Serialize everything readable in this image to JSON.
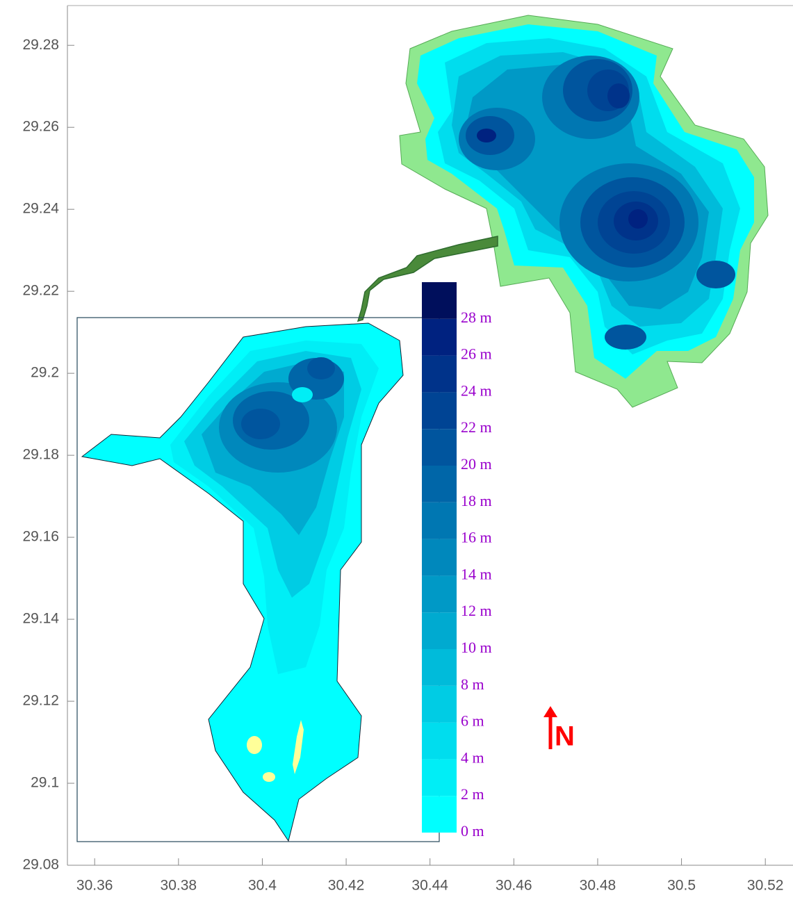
{
  "chart_data": {
    "type": "contour",
    "xlim": [
      30.3535,
      30.5266
    ],
    "ylim": [
      29.08,
      29.2897
    ],
    "xticks": [
      30.36,
      30.38,
      30.4,
      30.42,
      30.44,
      30.46,
      30.48,
      30.5,
      30.52
    ],
    "yticks": [
      29.08,
      29.1,
      29.12,
      29.14,
      29.16,
      29.18,
      29.2,
      29.22,
      29.24,
      29.26,
      29.28
    ],
    "colorbar": {
      "clim": [
        0,
        30
      ],
      "ticks": [
        {
          "value": 0,
          "label": "0  m"
        },
        {
          "value": 2,
          "label": "2  m"
        },
        {
          "value": 4,
          "label": "4  m"
        },
        {
          "value": 6,
          "label": "6  m"
        },
        {
          "value": 8,
          "label": "8  m"
        },
        {
          "value": 10,
          "label": "10  m"
        },
        {
          "value": 12,
          "label": "12  m"
        },
        {
          "value": 14,
          "label": "14  m"
        },
        {
          "value": 16,
          "label": "16  m"
        },
        {
          "value": 18,
          "label": "18  m"
        },
        {
          "value": 20,
          "label": "20  m"
        },
        {
          "value": 22,
          "label": "22  m"
        },
        {
          "value": 24,
          "label": "24  m"
        },
        {
          "value": 26,
          "label": "26  m"
        },
        {
          "value": 28,
          "label": "28  m"
        }
      ],
      "colors": [
        "#00FFFF",
        "#00EEF6",
        "#00DDEE",
        "#00CCE4",
        "#00BBDA",
        "#00AAD0",
        "#0099C6",
        "#0088BC",
        "#0077B2",
        "#0066A8",
        "#00559E",
        "#004494",
        "#00338A",
        "#002280",
        "#000F5C"
      ]
    },
    "north_label": "N"
  }
}
